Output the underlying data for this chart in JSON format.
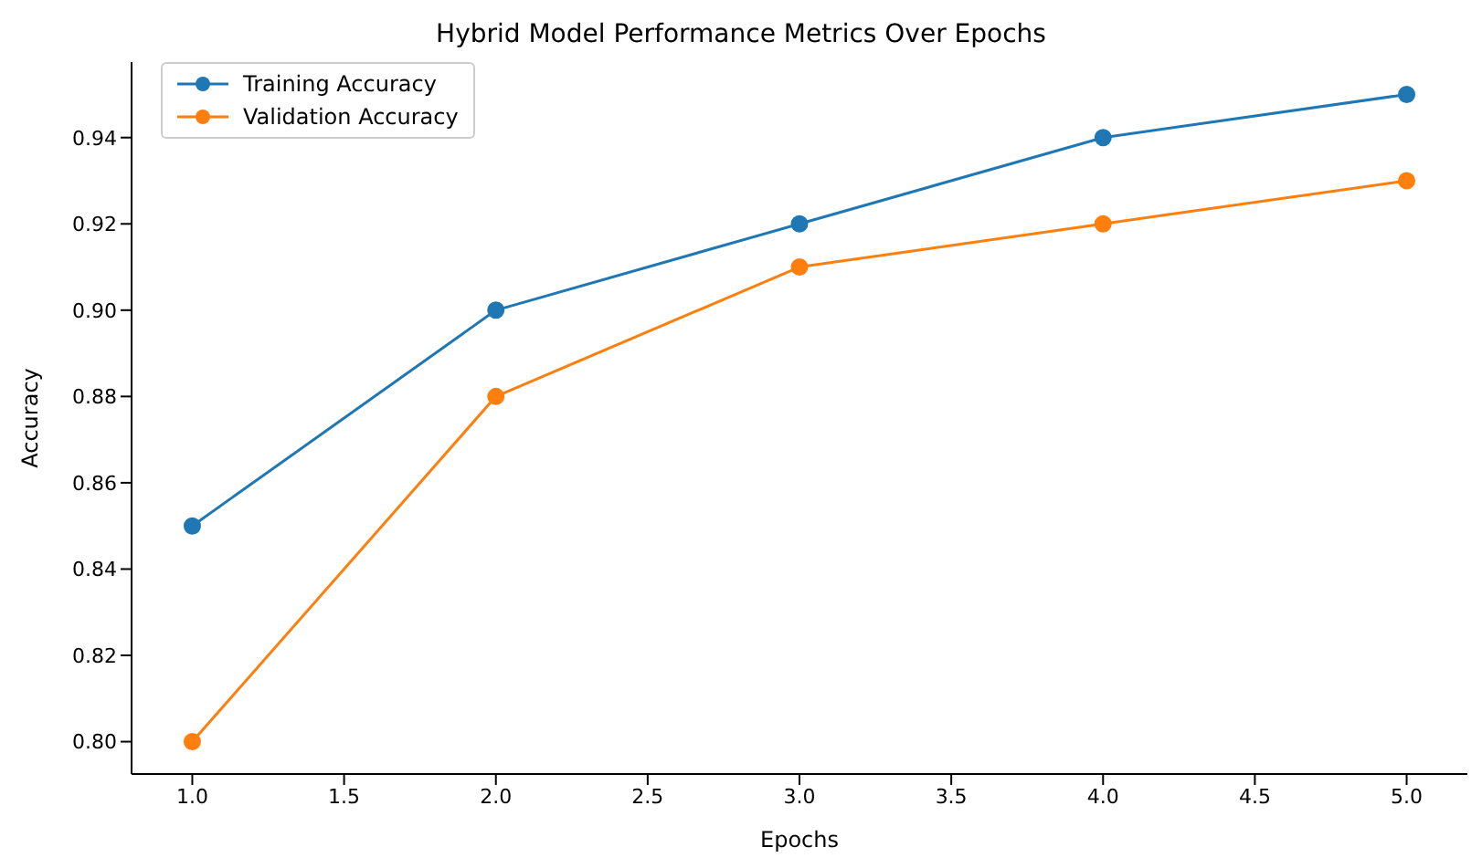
{
  "chart_data": {
    "type": "line",
    "title": "Hybrid Model Performance Metrics Over Epochs",
    "xlabel": "Epochs",
    "ylabel": "Accuracy",
    "x": [
      1,
      2,
      3,
      4,
      5
    ],
    "series": [
      {
        "name": "Training Accuracy",
        "color": "#1f77b4",
        "values": [
          0.85,
          0.9,
          0.92,
          0.94,
          0.95
        ]
      },
      {
        "name": "Validation Accuracy",
        "color": "#ff7f0e",
        "values": [
          0.8,
          0.88,
          0.91,
          0.92,
          0.93
        ]
      }
    ],
    "xlim": [
      0.8,
      5.2
    ],
    "xticks": [
      {
        "value": 1,
        "label": "1.0"
      },
      {
        "value": 1.5,
        "label": "1.5"
      },
      {
        "value": 2,
        "label": "2.0"
      },
      {
        "value": 2.5,
        "label": "2.5"
      },
      {
        "value": 3,
        "label": "3.0"
      },
      {
        "value": 3.5,
        "label": "3.5"
      },
      {
        "value": 4,
        "label": "4.0"
      },
      {
        "value": 4.5,
        "label": "4.5"
      },
      {
        "value": 5,
        "label": "5.0"
      }
    ],
    "ylim": [
      0.7925,
      0.9575
    ],
    "yticks": [
      {
        "value": 0.8,
        "label": "0.80"
      },
      {
        "value": 0.82,
        "label": "0.82"
      },
      {
        "value": 0.84,
        "label": "0.84"
      },
      {
        "value": 0.86,
        "label": "0.86"
      },
      {
        "value": 0.88,
        "label": "0.88"
      },
      {
        "value": 0.9,
        "label": "0.90"
      },
      {
        "value": 0.92,
        "label": "0.92"
      },
      {
        "value": 0.94,
        "label": "0.94"
      }
    ],
    "legend": "top left",
    "marker": "circle",
    "line_style": "solid"
  }
}
